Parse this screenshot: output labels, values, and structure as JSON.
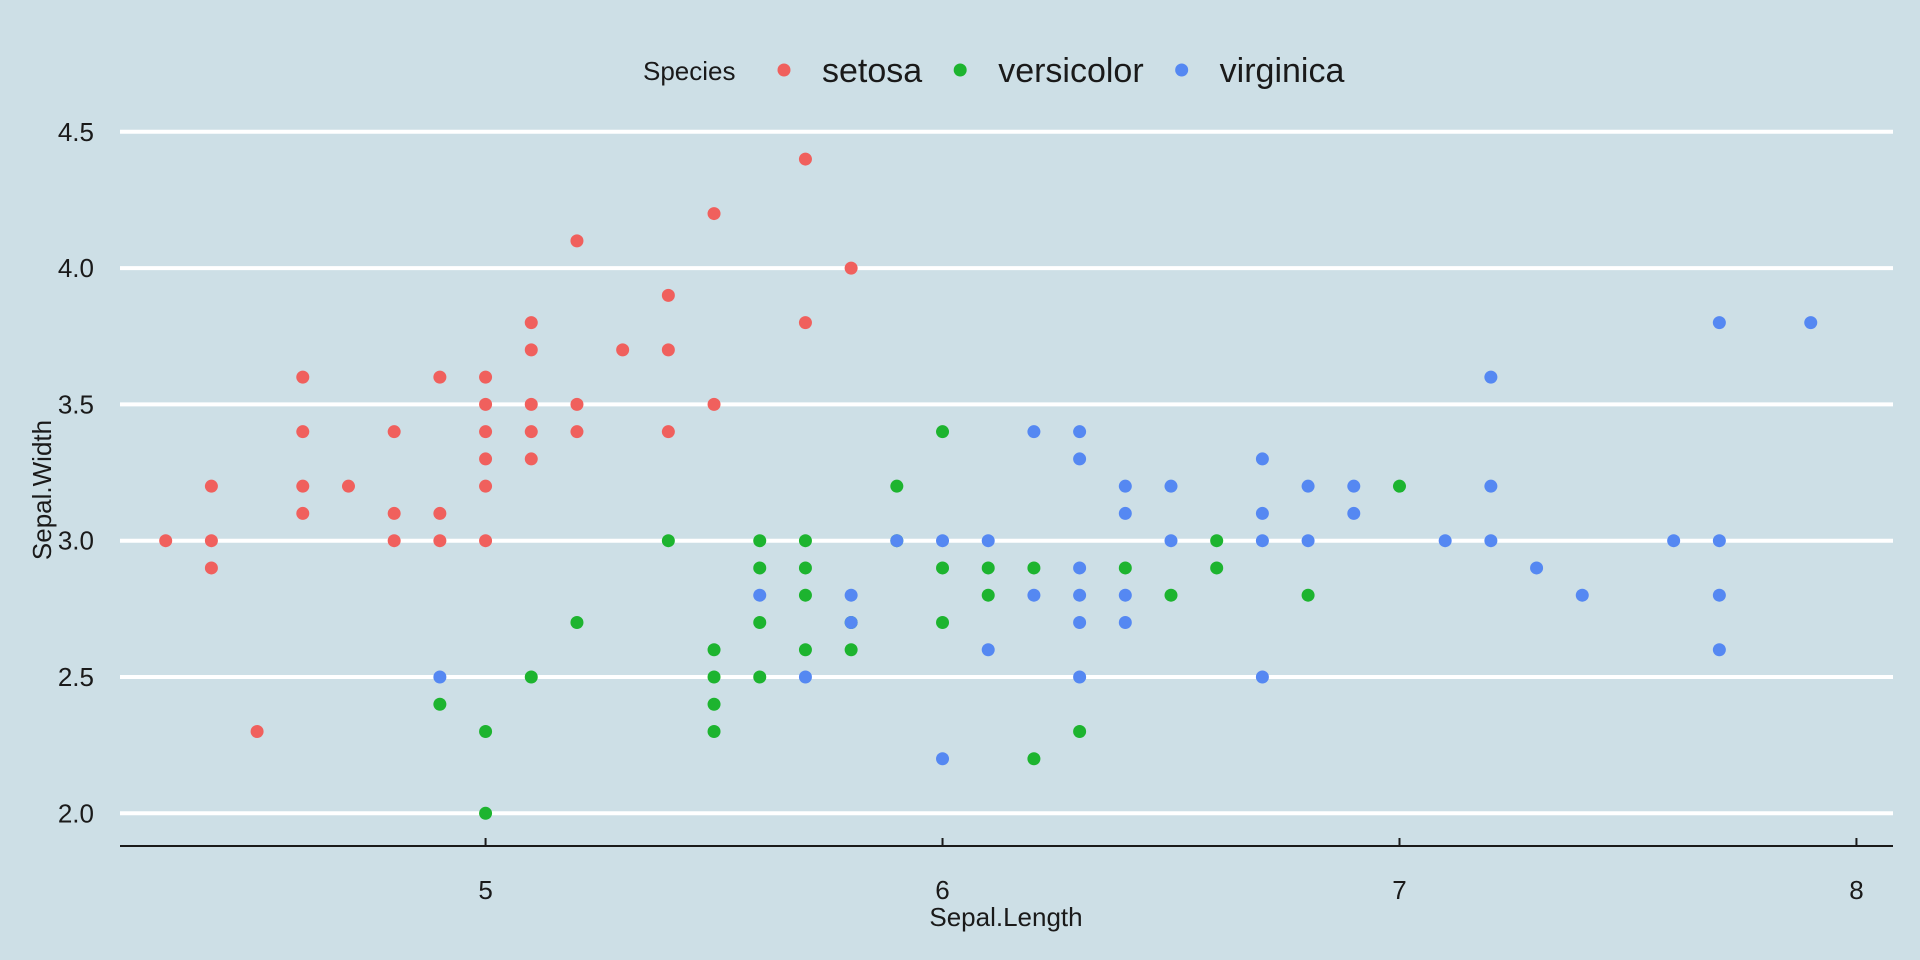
{
  "chart_data": {
    "type": "scatter",
    "xlabel": "Sepal.Length",
    "ylabel": "Sepal.Width",
    "xlim": [
      4.2,
      8.08
    ],
    "ylim": [
      1.88,
      4.58
    ],
    "x_ticks": [
      5,
      6,
      7,
      8
    ],
    "y_ticks": [
      2.0,
      2.5,
      3.0,
      3.5,
      4.0,
      4.5
    ],
    "x_tick_labels": [
      "5",
      "6",
      "7",
      "8"
    ],
    "y_tick_labels": [
      "2.0",
      "2.5",
      "3.0",
      "3.5",
      "4.0",
      "4.5"
    ],
    "grid": "horizontal-major",
    "legend_title": "Species",
    "legend_position": "top",
    "series": [
      {
        "name": "setosa",
        "color": "#f0605d",
        "points": [
          [
            4.3,
            3.0
          ],
          [
            4.4,
            3.2
          ],
          [
            4.4,
            3.0
          ],
          [
            4.4,
            2.9
          ],
          [
            4.5,
            2.3
          ],
          [
            4.6,
            3.6
          ],
          [
            4.6,
            3.4
          ],
          [
            4.6,
            3.2
          ],
          [
            4.6,
            3.1
          ],
          [
            4.7,
            3.2
          ],
          [
            4.8,
            3.4
          ],
          [
            4.8,
            3.1
          ],
          [
            4.8,
            3.0
          ],
          [
            4.9,
            3.6
          ],
          [
            4.9,
            3.1
          ],
          [
            4.9,
            3.0
          ],
          [
            5.0,
            3.6
          ],
          [
            5.0,
            3.5
          ],
          [
            5.0,
            3.4
          ],
          [
            5.0,
            3.3
          ],
          [
            5.0,
            3.2
          ],
          [
            5.0,
            3.0
          ],
          [
            5.1,
            3.8
          ],
          [
            5.1,
            3.7
          ],
          [
            5.1,
            3.5
          ],
          [
            5.1,
            3.4
          ],
          [
            5.1,
            3.3
          ],
          [
            5.2,
            4.1
          ],
          [
            5.2,
            3.5
          ],
          [
            5.2,
            3.4
          ],
          [
            5.3,
            3.7
          ],
          [
            5.4,
            3.9
          ],
          [
            5.4,
            3.7
          ],
          [
            5.4,
            3.4
          ],
          [
            5.5,
            4.2
          ],
          [
            5.5,
            3.5
          ],
          [
            5.7,
            4.4
          ],
          [
            5.7,
            3.8
          ],
          [
            5.8,
            4.0
          ]
        ]
      },
      {
        "name": "versicolor",
        "color": "#1db42f",
        "points": [
          [
            4.9,
            2.4
          ],
          [
            5.0,
            2.3
          ],
          [
            5.0,
            2.0
          ],
          [
            5.1,
            2.5
          ],
          [
            5.2,
            2.7
          ],
          [
            5.4,
            3.0
          ],
          [
            5.5,
            2.6
          ],
          [
            5.5,
            2.5
          ],
          [
            5.5,
            2.4
          ],
          [
            5.5,
            2.3
          ],
          [
            5.6,
            3.0
          ],
          [
            5.6,
            2.9
          ],
          [
            5.6,
            2.7
          ],
          [
            5.6,
            2.5
          ],
          [
            5.7,
            3.0
          ],
          [
            5.7,
            2.9
          ],
          [
            5.7,
            2.8
          ],
          [
            5.7,
            2.6
          ],
          [
            5.8,
            2.6
          ],
          [
            5.8,
            2.7
          ],
          [
            5.9,
            3.2
          ],
          [
            5.9,
            3.0
          ],
          [
            6.0,
            3.4
          ],
          [
            6.0,
            2.9
          ],
          [
            6.0,
            2.7
          ],
          [
            6.1,
            2.9
          ],
          [
            6.1,
            2.8
          ],
          [
            6.2,
            2.9
          ],
          [
            6.2,
            2.2
          ],
          [
            6.3,
            2.3
          ],
          [
            6.4,
            2.9
          ],
          [
            6.5,
            2.8
          ],
          [
            6.6,
            3.0
          ],
          [
            6.6,
            2.9
          ],
          [
            6.8,
            2.8
          ],
          [
            7.0,
            3.2
          ]
        ]
      },
      {
        "name": "virginica",
        "color": "#5588f2",
        "points": [
          [
            4.9,
            2.5
          ],
          [
            5.6,
            2.8
          ],
          [
            5.7,
            2.5
          ],
          [
            5.8,
            2.8
          ],
          [
            5.8,
            2.7
          ],
          [
            5.9,
            3.0
          ],
          [
            6.0,
            3.0
          ],
          [
            6.0,
            2.2
          ],
          [
            6.1,
            3.0
          ],
          [
            6.1,
            2.6
          ],
          [
            6.2,
            3.4
          ],
          [
            6.2,
            2.8
          ],
          [
            6.3,
            3.4
          ],
          [
            6.3,
            3.3
          ],
          [
            6.3,
            2.9
          ],
          [
            6.3,
            2.8
          ],
          [
            6.3,
            2.7
          ],
          [
            6.3,
            2.5
          ],
          [
            6.4,
            3.2
          ],
          [
            6.4,
            3.1
          ],
          [
            6.4,
            2.8
          ],
          [
            6.4,
            2.7
          ],
          [
            6.5,
            3.2
          ],
          [
            6.5,
            3.0
          ],
          [
            6.7,
            3.3
          ],
          [
            6.7,
            3.1
          ],
          [
            6.7,
            3.0
          ],
          [
            6.7,
            2.5
          ],
          [
            6.8,
            3.2
          ],
          [
            6.8,
            3.0
          ],
          [
            6.9,
            3.2
          ],
          [
            6.9,
            3.1
          ],
          [
            7.1,
            3.0
          ],
          [
            7.2,
            3.6
          ],
          [
            7.2,
            3.2
          ],
          [
            7.2,
            3.0
          ],
          [
            7.3,
            2.9
          ],
          [
            7.4,
            2.8
          ],
          [
            7.6,
            3.0
          ],
          [
            7.7,
            3.8
          ],
          [
            7.7,
            3.0
          ],
          [
            7.7,
            2.8
          ],
          [
            7.7,
            2.6
          ],
          [
            7.9,
            3.8
          ]
        ]
      }
    ]
  }
}
